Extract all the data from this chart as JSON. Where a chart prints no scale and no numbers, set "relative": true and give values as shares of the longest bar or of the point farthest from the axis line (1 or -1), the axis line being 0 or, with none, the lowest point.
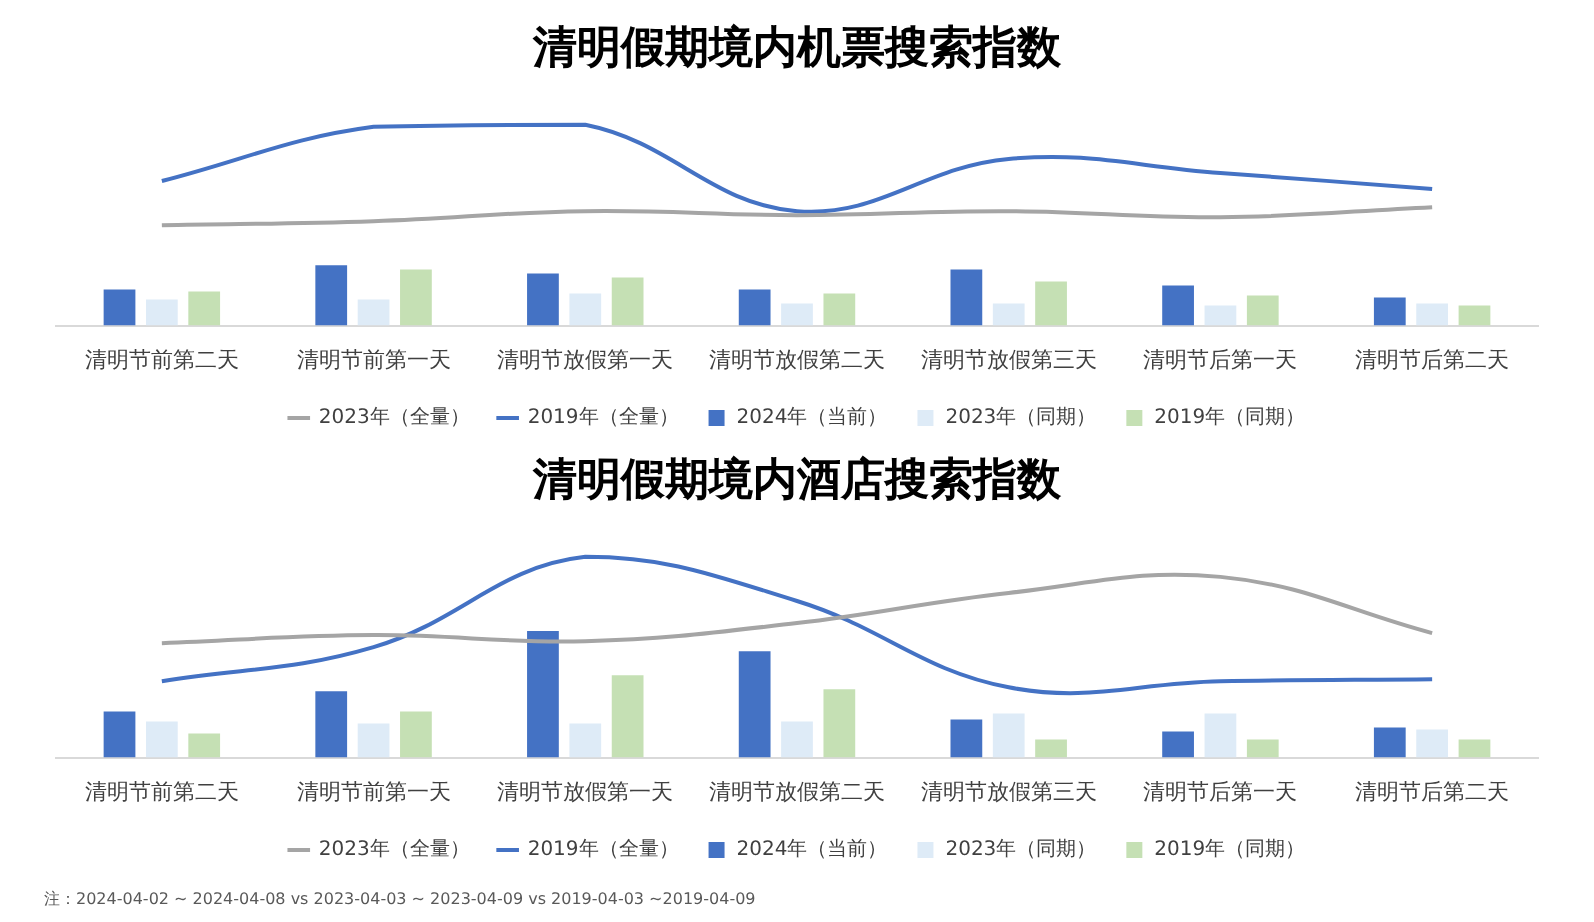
{
  "chart_data": [
    {
      "type": "bar",
      "title": "清明假期境内机票搜索指数",
      "relative": true,
      "legend": "bottom",
      "grid": false,
      "categories": [
        "清明节前第二天",
        "清明节前第一天",
        "清明节放假第一天",
        "清明节放假第二天",
        "清明节放假第三天",
        "清明节后第一天",
        "清明节后第二天"
      ],
      "series": [
        {
          "name": "2024年（当前）",
          "color": "#4472c4",
          "values": [
            0.18,
            0.3,
            0.26,
            0.18,
            0.28,
            0.2,
            0.14
          ]
        },
        {
          "name": "2023年（同期）",
          "color": "#deebf7",
          "values": [
            0.13,
            0.13,
            0.16,
            0.11,
            0.11,
            0.1,
            0.11
          ]
        },
        {
          "name": "2019年（同期）",
          "color": "#c5e0b4",
          "values": [
            0.17,
            0.28,
            0.24,
            0.16,
            0.22,
            0.15,
            0.1
          ]
        },
        {
          "name": "2023年（全量）",
          "type": "line",
          "color": "#a5a5a5",
          "values": [
            0.5,
            0.52,
            0.57,
            0.55,
            0.57,
            0.54,
            0.59
          ]
        },
        {
          "name": "2019年（全量）",
          "type": "line",
          "color": "#4472c4",
          "values": [
            0.72,
            0.99,
            1,
            0.57,
            0.83,
            0.76,
            0.68
          ]
        }
      ]
    },
    {
      "type": "bar",
      "title": "清明假期境内酒店搜索指数",
      "relative": true,
      "legend": "bottom",
      "grid": false,
      "categories": [
        "清明节前第二天",
        "清明节前第一天",
        "清明节放假第一天",
        "清明节放假第二天",
        "清明节放假第三天",
        "清明节后第一天",
        "清明节后第二天"
      ],
      "annotations": [
        "注：2024-04-02 ~ 2024-04-08  vs 2023-04-03  ~ 2023-04-09  vs 2019-04-03  ~2019-04-09"
      ],
      "series": [
        {
          "name": "2024年（当前）",
          "color": "#4472c4",
          "values": [
            0.23,
            0.33,
            0.63,
            0.53,
            0.19,
            0.13,
            0.15
          ]
        },
        {
          "name": "2023年（同期）",
          "color": "#deebf7",
          "values": [
            0.18,
            0.17,
            0.17,
            0.18,
            0.22,
            0.22,
            0.14
          ]
        },
        {
          "name": "2019年（同期）",
          "color": "#c5e0b4",
          "values": [
            0.12,
            0.23,
            0.41,
            0.34,
            0.09,
            0.09,
            0.09
          ]
        },
        {
          "name": "2023年（全量）",
          "type": "line",
          "color": "#a5a5a5",
          "values": [
            0.57,
            0.61,
            0.58,
            0.67,
            0.82,
            0.9,
            0.62
          ]
        },
        {
          "name": "2019年（全量）",
          "type": "line",
          "color": "#4472c4",
          "values": [
            0.38,
            0.55,
            1,
            0.78,
            0.35,
            0.38,
            0.39
          ]
        }
      ]
    }
  ]
}
